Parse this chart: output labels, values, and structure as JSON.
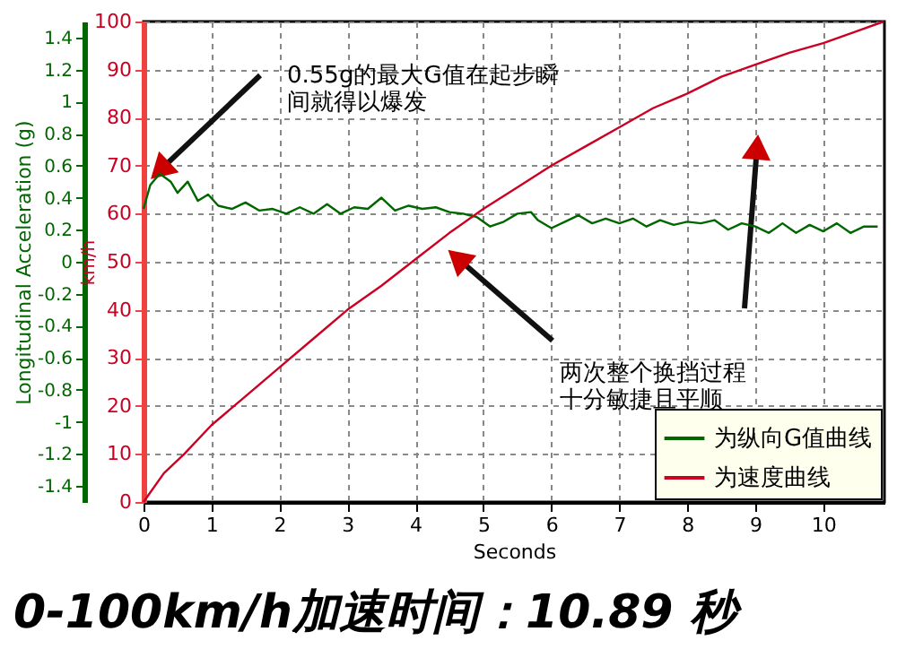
{
  "chart_data": {
    "type": "line",
    "title": "0-100km/h加速时间：10.89 秒",
    "xlabel": "Seconds",
    "ylabel": "km/h",
    "y2label": "Longitudinal Acceleration (g)",
    "xlim": [
      0,
      10.9
    ],
    "xticks": [
      0,
      1,
      2,
      3,
      4,
      5,
      6,
      7,
      8,
      9,
      10
    ],
    "ylim": [
      0,
      100
    ],
    "yticks": [
      0,
      10,
      20,
      30,
      40,
      50,
      60,
      70,
      80,
      90,
      100
    ],
    "y2lim": [
      -1.5,
      1.5
    ],
    "y2ticks": [
      -1.4,
      -1.2,
      -1,
      -0.8,
      -0.6,
      -0.4,
      -0.2,
      0,
      0.2,
      0.4,
      0.6,
      0.8,
      1,
      1.2,
      1.4
    ],
    "grid": true,
    "legend": "bottom right",
    "line_style": "solid",
    "marker": "none",
    "series": [
      {
        "name": "为纵向G值曲线",
        "color": "#006600",
        "axis": "y2",
        "x": [
          0,
          0.1,
          0.24,
          0.4,
          0.5,
          0.65,
          0.8,
          0.95,
          1.1,
          1.3,
          1.5,
          1.7,
          1.9,
          2.1,
          2.3,
          2.5,
          2.7,
          2.9,
          3.1,
          3.3,
          3.5,
          3.7,
          3.9,
          4.1,
          4.3,
          4.5,
          4.7,
          4.9,
          5.1,
          5.3,
          5.5,
          5.7,
          5.8,
          6,
          6.2,
          6.4,
          6.6,
          6.8,
          7,
          7.2,
          7.4,
          7.6,
          7.8,
          8,
          8.2,
          8.4,
          8.6,
          8.8,
          9,
          9.2,
          9.4,
          9.6,
          9.8,
          10,
          10.2,
          10.4,
          10.6,
          10.8
        ],
        "values": [
          0.33,
          0.48,
          0.55,
          0.5,
          0.43,
          0.5,
          0.38,
          0.42,
          0.35,
          0.33,
          0.37,
          0.32,
          0.33,
          0.3,
          0.34,
          0.3,
          0.36,
          0.3,
          0.34,
          0.33,
          0.4,
          0.32,
          0.35,
          0.33,
          0.34,
          0.31,
          0.3,
          0.28,
          0.22,
          0.25,
          0.3,
          0.31,
          0.26,
          0.21,
          0.25,
          0.29,
          0.24,
          0.27,
          0.24,
          0.27,
          0.22,
          0.26,
          0.23,
          0.25,
          0.24,
          0.26,
          0.2,
          0.24,
          0.22,
          0.18,
          0.24,
          0.18,
          0.23,
          0.19,
          0.24,
          0.18,
          0.22,
          0.22
        ]
      },
      {
        "name": "为速度曲线",
        "color": "#cc0022",
        "x": [
          0,
          0.3,
          0.6,
          1,
          1.5,
          2,
          2.5,
          3,
          3.5,
          4,
          4.5,
          5,
          5.5,
          6,
          6.5,
          7,
          7.5,
          8,
          8.5,
          9,
          9.5,
          10,
          10.5,
          10.89
        ],
        "values": [
          0,
          6,
          10,
          16,
          22,
          28,
          34,
          40,
          45,
          50.5,
          56,
          61,
          65.5,
          70,
          74,
          78,
          82,
          85,
          88.5,
          91,
          93.5,
          95.5,
          98,
          100
        ]
      }
    ],
    "annotations": [
      {
        "text": "0.55g的最大G值在起步瞬间就得以爆发",
        "x": 0.24,
        "y": 69
      },
      "两次整个换挡过程十分敏捷且平顺"
    ]
  }
}
